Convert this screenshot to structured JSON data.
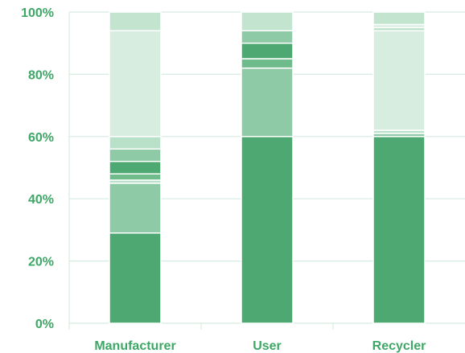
{
  "chart_data": {
    "type": "stacked-bar",
    "title": "",
    "xlabel": "",
    "ylabel": "",
    "ylim": [
      0,
      100
    ],
    "yticks": [
      "0%",
      "20%",
      "40%",
      "60%",
      "80%",
      "100%"
    ],
    "categories": [
      "Manufacturer",
      "User",
      "Recycler"
    ],
    "grid": true,
    "legend": "none",
    "series": [
      {
        "color": "#4ea872",
        "values": [
          29,
          60,
          60
        ]
      },
      {
        "color": "#8fcaa6",
        "values": [
          16,
          22,
          0
        ]
      },
      {
        "color": "#b9e0c8",
        "values": [
          1,
          0,
          0
        ]
      },
      {
        "color": "#6fbb8c",
        "values": [
          2,
          3,
          0
        ]
      },
      {
        "color": "#4ea872",
        "values": [
          4,
          5,
          0
        ]
      },
      {
        "color": "#8fcaa6",
        "values": [
          4,
          4,
          1
        ]
      },
      {
        "color": "#b9e0c8",
        "values": [
          4,
          0,
          1
        ]
      },
      {
        "color": "#d6ede0",
        "values": [
          34,
          0,
          32
        ]
      },
      {
        "color": "#b9e0c8",
        "values": [
          0,
          0,
          1
        ]
      },
      {
        "color": "#d6ede0",
        "values": [
          0,
          0,
          1
        ]
      },
      {
        "color": "#c3e5cf",
        "values": [
          6,
          6,
          4
        ]
      }
    ]
  }
}
